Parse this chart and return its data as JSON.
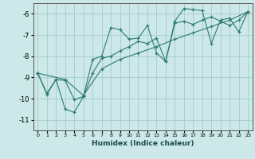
{
  "xlabel": "Humidex (Indice chaleur)",
  "bg_color": "#cce8e8",
  "grid_color": "#aacfcf",
  "line_color": "#2d7d6e",
  "xlim": [
    -0.5,
    23.5
  ],
  "ylim": [
    -11.5,
    -5.5
  ],
  "xticks": [
    0,
    1,
    2,
    3,
    4,
    5,
    6,
    7,
    8,
    9,
    10,
    11,
    12,
    13,
    14,
    15,
    16,
    17,
    18,
    19,
    20,
    21,
    22,
    23
  ],
  "yticks": [
    -11,
    -10,
    -9,
    -8,
    -7,
    -6
  ],
  "series1": [
    [
      0,
      -8.8
    ],
    [
      1,
      -9.8
    ],
    [
      2,
      -9.1
    ],
    [
      3,
      -10.5
    ],
    [
      4,
      -10.65
    ],
    [
      5,
      -9.9
    ],
    [
      6,
      -8.15
    ],
    [
      7,
      -8.0
    ],
    [
      8,
      -6.65
    ],
    [
      9,
      -6.75
    ],
    [
      10,
      -7.2
    ],
    [
      11,
      -7.15
    ],
    [
      12,
      -6.55
    ],
    [
      13,
      -7.85
    ],
    [
      14,
      -8.25
    ],
    [
      15,
      -6.35
    ],
    [
      16,
      -5.75
    ],
    [
      17,
      -5.8
    ],
    [
      18,
      -5.85
    ],
    [
      19,
      -7.4
    ],
    [
      20,
      -6.3
    ],
    [
      21,
      -6.2
    ],
    [
      22,
      -6.85
    ],
    [
      23,
      -5.9
    ]
  ],
  "series2": [
    [
      0,
      -8.8
    ],
    [
      1,
      -9.75
    ],
    [
      2,
      -9.1
    ],
    [
      3,
      -9.15
    ],
    [
      4,
      -10.05
    ],
    [
      5,
      -9.9
    ],
    [
      6,
      -8.8
    ],
    [
      7,
      -8.1
    ],
    [
      8,
      -8.0
    ],
    [
      9,
      -7.75
    ],
    [
      10,
      -7.55
    ],
    [
      11,
      -7.3
    ],
    [
      12,
      -7.4
    ],
    [
      13,
      -7.15
    ],
    [
      14,
      -8.25
    ],
    [
      15,
      -6.45
    ],
    [
      16,
      -6.35
    ],
    [
      17,
      -6.5
    ],
    [
      18,
      -6.3
    ],
    [
      19,
      -6.15
    ],
    [
      20,
      -6.35
    ],
    [
      21,
      -6.55
    ],
    [
      22,
      -6.3
    ],
    [
      23,
      -5.9
    ]
  ],
  "series3": [
    [
      0,
      -8.8
    ],
    [
      3,
      -9.1
    ],
    [
      5,
      -9.85
    ],
    [
      7,
      -8.6
    ],
    [
      9,
      -8.15
    ],
    [
      11,
      -7.85
    ],
    [
      13,
      -7.55
    ],
    [
      15,
      -7.2
    ],
    [
      17,
      -6.9
    ],
    [
      19,
      -6.6
    ],
    [
      21,
      -6.3
    ],
    [
      23,
      -5.9
    ]
  ]
}
